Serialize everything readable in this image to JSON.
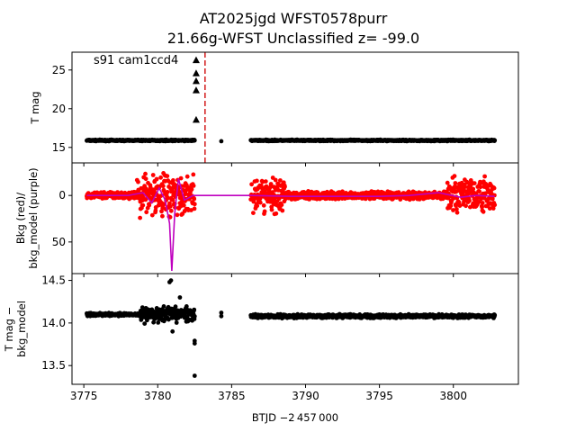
{
  "chart_data": {
    "type": "scatter",
    "title": {
      "line1": "AT2025jgd  WFST0578purr",
      "line2": "21.66g-WFST Unclassified z= -99.0"
    },
    "annotation": "s91 cam1ccd4",
    "xlabel": "BTJD −2 457 000",
    "xlim": [
      3774.2,
      3804.4
    ],
    "xticks": [
      3775,
      3780,
      3785,
      3790,
      3795,
      3800
    ],
    "vline": {
      "x": 3783.2,
      "color": "#d62728",
      "style": "dashed"
    },
    "panels": [
      {
        "id": "tmag",
        "ylabel": [
          "T mag"
        ],
        "ylim": [
          27.3,
          13.0
        ],
        "yticks": [
          15,
          20,
          25
        ],
        "series": [
          {
            "name": "T mag",
            "color": "#000000",
            "marker": "circle",
            "segments": [
              {
                "x": [
                  3775.2,
                  3782.5
                ],
                "y": 15.9,
                "jitter": 0.12
              },
              {
                "x": [
                  3786.3,
                  3802.8
                ],
                "y": 15.9,
                "jitter": 0.12
              }
            ],
            "points": [
              [
                3784.3,
                15.8
              ]
            ]
          },
          {
            "name": "upper limits",
            "color": "#000000",
            "marker": "triangle",
            "points": [
              [
                3782.6,
                18.6
              ],
              [
                3782.6,
                22.4
              ],
              [
                3782.6,
                23.6
              ],
              [
                3782.6,
                24.6
              ],
              [
                3782.6,
                26.3
              ]
            ]
          }
        ]
      },
      {
        "id": "bkg",
        "ylabel": [
          "Bkg (red)/",
          "bkg_model (purple)"
        ],
        "ylim": [
          -35,
          84
        ],
        "yticks": [
          0,
          50
        ],
        "series": [
          {
            "name": "Bkg",
            "color": "#ff0000",
            "marker": "circle",
            "segments": [
              {
                "x": [
                  3775.2,
                  3778.6
                ],
                "spread": 4
              },
              {
                "x": [
                  3778.6,
                  3782.5
                ],
                "spread": 26
              },
              {
                "x": [
                  3786.3,
                  3788.6
                ],
                "spread": 24
              },
              {
                "x": [
                  3788.6,
                  3799.6
                ],
                "spread": 5
              },
              {
                "x": [
                  3799.6,
                  3802.8
                ],
                "spread": 22
              }
            ]
          },
          {
            "name": "bkg_model",
            "color": "#bf00bf",
            "marker": "line",
            "points": [
              [
                3775.2,
                0
              ],
              [
                3778.0,
                0
              ],
              [
                3779.0,
                -3
              ],
              [
                3779.6,
                8
              ],
              [
                3780.1,
                -8
              ],
              [
                3780.5,
                5
              ],
              [
                3780.8,
                30
              ],
              [
                3780.95,
                81
              ],
              [
                3781.15,
                20
              ],
              [
                3781.4,
                -18
              ],
              [
                3781.8,
                5
              ],
              [
                3782.4,
                0
              ],
              [
                3786.3,
                0
              ],
              [
                3789.0,
                1
              ],
              [
                3795.0,
                1
              ],
              [
                3797.0,
                0
              ],
              [
                3799.0,
                -3
              ],
              [
                3800.5,
                2
              ],
              [
                3801.5,
                0
              ],
              [
                3802.8,
                1
              ]
            ]
          }
        ]
      },
      {
        "id": "resid",
        "ylabel": [
          "T mag −",
          "bkg_model"
        ],
        "ylim": [
          14.58,
          13.28
        ],
        "yticks": [
          13.5,
          14.0,
          14.5
        ],
        "series": [
          {
            "name": "T mag − bkg_model",
            "color": "#000000",
            "marker": "circle",
            "segments": [
              {
                "x": [
                  3775.2,
                  3778.8
                ],
                "y": 14.1,
                "jitter": 0.025
              },
              {
                "x": [
                  3778.8,
                  3782.5
                ],
                "y": 14.1,
                "jitter": 0.12
              },
              {
                "x": [
                  3786.3,
                  3802.8
                ],
                "y": 14.08,
                "jitter": 0.028
              }
            ],
            "points": [
              [
                3782.5,
                13.38
              ],
              [
                3782.5,
                13.76
              ],
              [
                3782.5,
                13.79
              ],
              [
                3781.0,
                13.9
              ],
              [
                3780.8,
                14.48
              ],
              [
                3780.9,
                14.5
              ],
              [
                3781.5,
                14.3
              ],
              [
                3784.3,
                14.08
              ],
              [
                3784.3,
                14.12
              ]
            ]
          }
        ]
      }
    ]
  }
}
